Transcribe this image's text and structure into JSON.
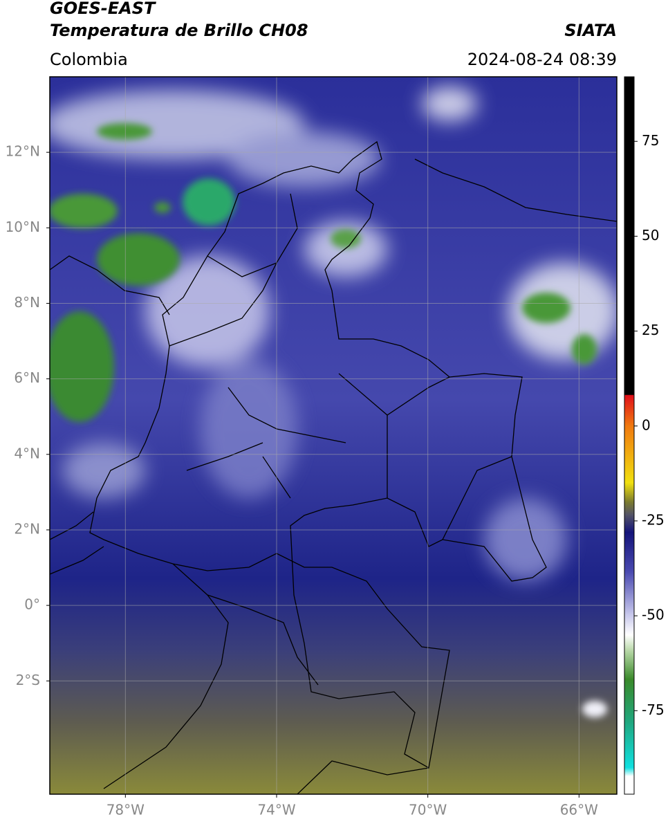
{
  "header": {
    "title": "GOES-EAST",
    "subtitle": "Temperatura de Brillo CH08",
    "region": "Colombia",
    "source": "SIATA",
    "datetime": "2024-08-24 08:39"
  },
  "map": {
    "lonlim": [
      -80,
      -65
    ],
    "latlim": [
      -5,
      14
    ],
    "grid": true,
    "lonticks": [
      {
        "value": -78,
        "label": "78°W"
      },
      {
        "value": -74,
        "label": "74°W"
      },
      {
        "value": -70,
        "label": "70°W"
      },
      {
        "value": -66,
        "label": "66°W"
      }
    ],
    "latticks": [
      {
        "value": 12,
        "label": "12°N"
      },
      {
        "value": 10,
        "label": "10°N"
      },
      {
        "value": 8,
        "label": "8°N"
      },
      {
        "value": 6,
        "label": "6°N"
      },
      {
        "value": 4,
        "label": "4°N"
      },
      {
        "value": 2,
        "label": "2°N"
      },
      {
        "value": 0,
        "label": "0°"
      },
      {
        "value": -2,
        "label": "2°S"
      }
    ]
  },
  "colorbar": {
    "lim": [
      -97,
      92
    ],
    "ticks": [
      75,
      50,
      25,
      0,
      -25,
      -50,
      -75
    ]
  }
}
